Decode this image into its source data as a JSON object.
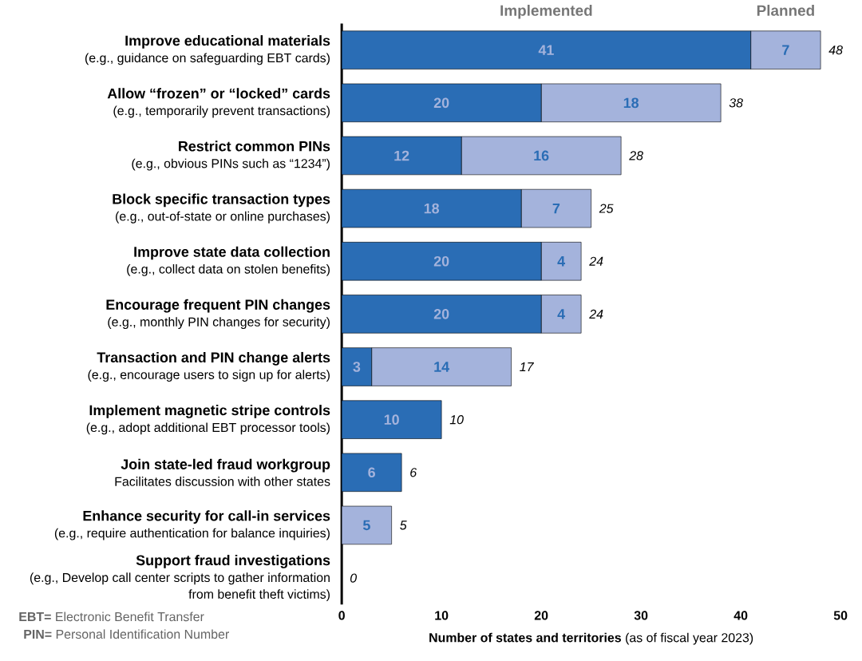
{
  "chart_data": {
    "type": "bar",
    "orientation": "horizontal",
    "stacked": true,
    "categories": [
      "Improve educational materials",
      "Allow “frozen” or “locked” cards",
      "Restrict common PINs",
      "Block specific transaction types",
      "Improve state data collection",
      "Encourage frequent PIN changes",
      "Transaction and PIN change alerts",
      "Implement magnetic stripe controls",
      "Join state-led fraud workgroup",
      "Enhance security for call-in services",
      "Support fraud investigations"
    ],
    "series": [
      {
        "name": "Implemented",
        "color": "#2a6db5",
        "values": [
          41,
          20,
          12,
          18,
          20,
          20,
          3,
          10,
          6,
          0,
          0
        ],
        "value_labels": [
          "41",
          "20",
          "12",
          "18",
          "20",
          "20",
          "3",
          "10",
          "6",
          null,
          null
        ]
      },
      {
        "name": "Planned",
        "color": "#a4b3dc",
        "values": [
          7,
          18,
          16,
          7,
          4,
          4,
          14,
          0,
          0,
          5,
          0
        ],
        "value_labels": [
          "7",
          "18",
          "16",
          "7",
          "4",
          "4",
          "14",
          null,
          null,
          "5",
          null
        ]
      }
    ],
    "totals": [
      "48",
      "38",
      "28",
      "25",
      "24",
      "24",
      "17",
      "10",
      "6",
      "5",
      "0"
    ],
    "xlim": [
      0,
      50
    ],
    "xticks": [
      0,
      10,
      20,
      30,
      40,
      50
    ],
    "xlabel": "**Number of states and territories** (as of fiscal year 2023)",
    "annotations": [
      "(e.g., guidance on safeguarding EBT cards)",
      "(e.g., temporarily prevent transactions)",
      "(e.g., obvious PINs such as “1234”)",
      "(e.g., out-of-state or online purchases)",
      "(e.g., collect data on stolen benefits)",
      "(e.g., monthly PIN changes for security)",
      "(e.g., encourage users to sign up for alerts)",
      "(e.g., adopt additional EBT processor tools)",
      "Facilitates discussion with other states",
      "(e.g., require authentication for balance inquiries)",
      "(e.g., Develop call center scripts to gather information from benefit theft victims)",
      "**EBT=** Electronic Benefit Transfer",
      "**PIN=** Personal Identification Number"
    ]
  }
}
